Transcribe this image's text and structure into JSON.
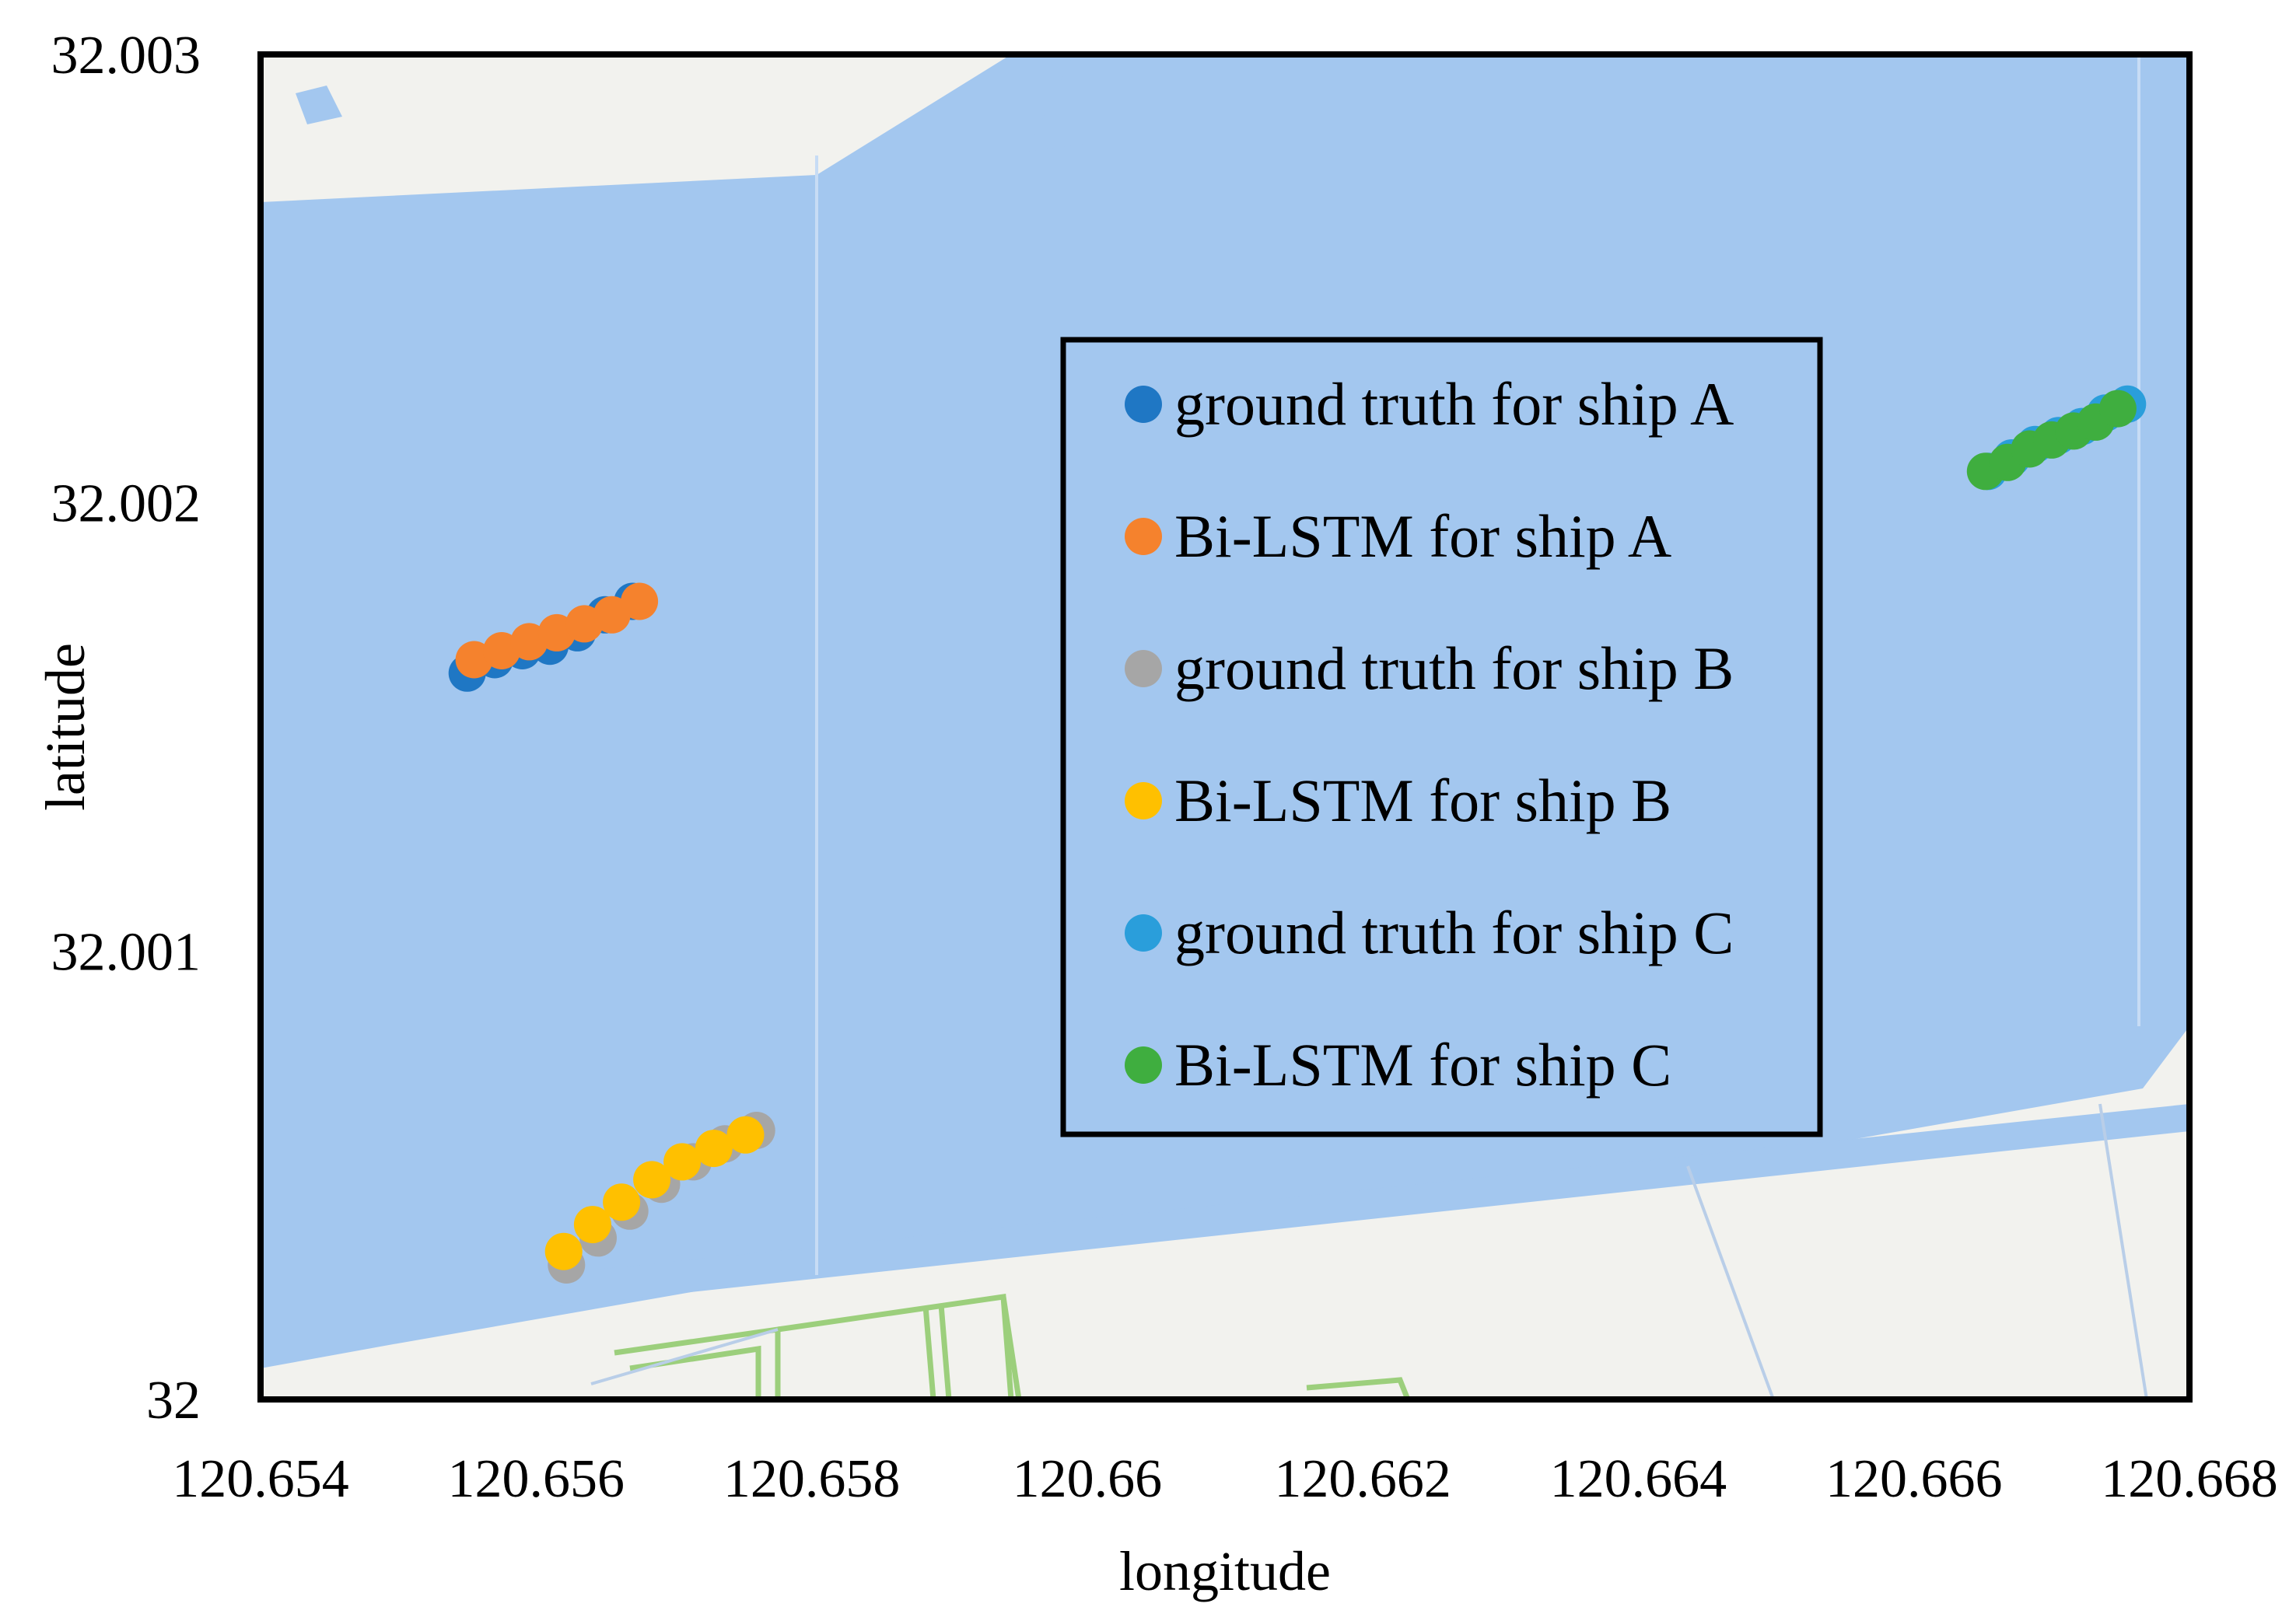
{
  "chart_data": {
    "type": "scatter",
    "xlabel": "longitude",
    "ylabel": "latitude",
    "xlim": [
      120.654,
      120.668
    ],
    "ylim": [
      32,
      32.003
    ],
    "xticks": [
      "120.654",
      "120.656",
      "120.658",
      "120.66",
      "120.662",
      "120.664",
      "120.666",
      "120.668"
    ],
    "yticks": [
      "32",
      "32.001",
      "32.002",
      "32.003"
    ],
    "legend_position": "upper-center-right",
    "background": "map of waterway (light blue water, pale gray land, green outlined plots)",
    "series": [
      {
        "name": "ground truth for ship A",
        "color": "#1f77c4",
        "points": [
          [
            120.6555,
            32.00162
          ],
          [
            120.6557,
            32.00165
          ],
          [
            120.6559,
            32.00167
          ],
          [
            120.6561,
            32.00168
          ],
          [
            120.6563,
            32.00171
          ],
          [
            120.6565,
            32.00175
          ],
          [
            120.6567,
            32.00178
          ]
        ]
      },
      {
        "name": "Bi-LSTM for ship A",
        "color": "#f5822d",
        "points": [
          [
            120.65555,
            32.00165
          ],
          [
            120.65575,
            32.00167
          ],
          [
            120.65595,
            32.00169
          ],
          [
            120.65615,
            32.00171
          ],
          [
            120.65635,
            32.00173
          ],
          [
            120.65655,
            32.00175
          ],
          [
            120.65675,
            32.00178
          ]
        ]
      },
      {
        "name": "ground truth for ship B",
        "color": "#a6a6a6",
        "points": [
          [
            120.65622,
            32.0003
          ],
          [
            120.65645,
            32.00036
          ],
          [
            120.65668,
            32.00042
          ],
          [
            120.65691,
            32.00048
          ],
          [
            120.65714,
            32.00053
          ],
          [
            120.65737,
            32.00057
          ],
          [
            120.6576,
            32.0006
          ]
        ]
      },
      {
        "name": "Bi-LSTM for ship B",
        "color": "#ffc000",
        "points": [
          [
            120.6562,
            32.00033
          ],
          [
            120.65641,
            32.00039
          ],
          [
            120.65662,
            32.00044
          ],
          [
            120.65684,
            32.00049
          ],
          [
            120.65706,
            32.00053
          ],
          [
            120.65729,
            32.00056
          ],
          [
            120.65752,
            32.00059
          ]
        ]
      },
      {
        "name": "ground truth for ship C",
        "color": "#2a9edb",
        "points": [
          [
            120.66654,
            32.00207
          ],
          [
            120.66671,
            32.0021
          ],
          [
            120.66688,
            32.00213
          ],
          [
            120.66705,
            32.00215
          ],
          [
            120.66722,
            32.00217
          ],
          [
            120.66739,
            32.0022
          ],
          [
            120.66755,
            32.00222
          ]
        ]
      },
      {
        "name": "Bi-LSTM for ship C",
        "color": "#3fae3f",
        "points": [
          [
            120.66652,
            32.00207
          ],
          [
            120.66668,
            32.00209
          ],
          [
            120.66684,
            32.00212
          ],
          [
            120.667,
            32.00214
          ],
          [
            120.66716,
            32.00216
          ],
          [
            120.66732,
            32.00218
          ],
          [
            120.66748,
            32.00221
          ]
        ]
      }
    ]
  }
}
